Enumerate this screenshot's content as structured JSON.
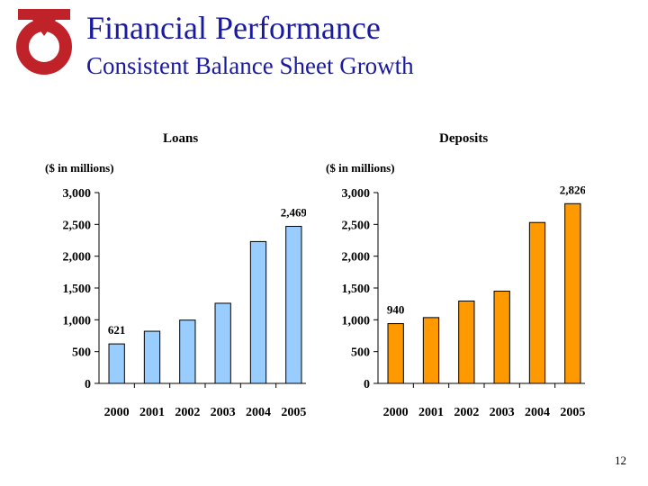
{
  "header": {
    "title": "Financial Performance",
    "subtitle": "Consistent Balance Sheet Growth"
  },
  "footer": {
    "page_number": "12"
  },
  "colors": {
    "title": "#1a1aa0",
    "logo": "#c0222a",
    "loans_bar": "#99ccff",
    "deposits_bar": "#ff9900"
  },
  "chart_data": [
    {
      "type": "bar",
      "title": "Loans",
      "units_label": "($ in millions)",
      "categories": [
        "2000",
        "2001",
        "2002",
        "2003",
        "2004",
        "2005"
      ],
      "values": [
        621,
        820,
        995,
        1260,
        2230,
        2469
      ],
      "data_labels": {
        "2000": "621",
        "2005": "2,469"
      },
      "ylim": [
        0,
        3000
      ],
      "yticks": [
        0,
        500,
        1000,
        1500,
        2000,
        2500,
        3000
      ],
      "ytick_labels": [
        "0",
        "500",
        "1,000",
        "1,500",
        "2,000",
        "2,500",
        "3,000"
      ],
      "grid": false,
      "color": "#99ccff"
    },
    {
      "type": "bar",
      "title": "Deposits",
      "units_label": "($ in millions)",
      "categories": [
        "2000",
        "2001",
        "2002",
        "2003",
        "2004",
        "2005"
      ],
      "values": [
        940,
        1035,
        1295,
        1450,
        2530,
        2826
      ],
      "data_labels": {
        "2000": "940",
        "2005": "2,826"
      },
      "ylim": [
        0,
        3000
      ],
      "yticks": [
        0,
        500,
        1000,
        1500,
        2000,
        2500,
        3000
      ],
      "ytick_labels": [
        "0",
        "500",
        "1,000",
        "1,500",
        "2,000",
        "2,500",
        "3,000"
      ],
      "grid": false,
      "color": "#ff9900"
    }
  ]
}
